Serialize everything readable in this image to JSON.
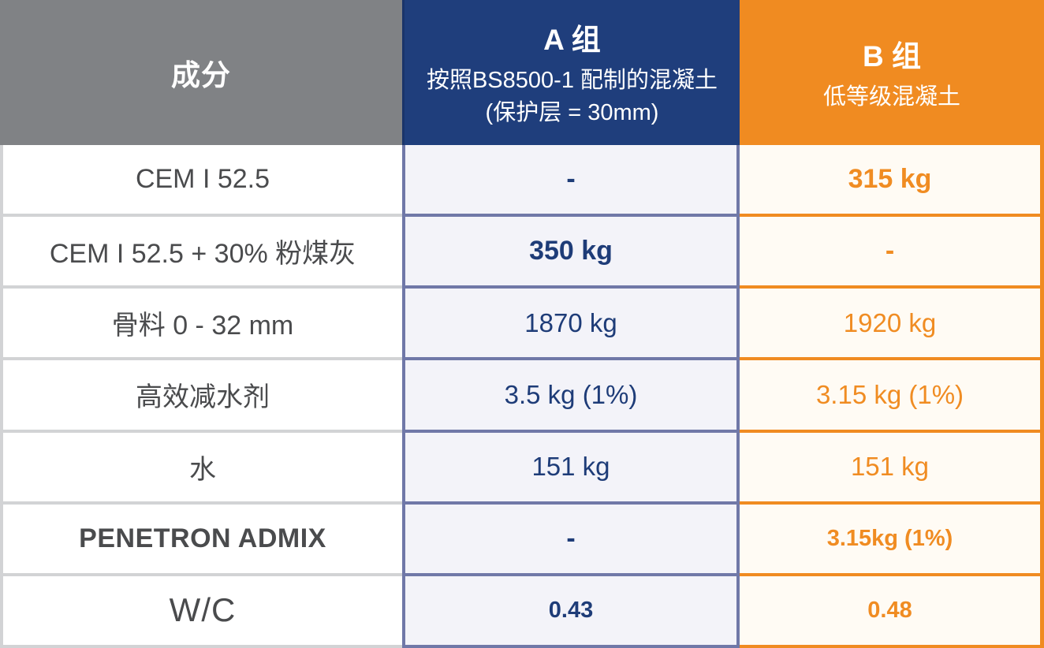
{
  "chart_data": {
    "type": "table",
    "header": {
      "ingredient": "成分",
      "group_a_title": "A 组",
      "group_a_subtitle": "按照BS8500-1 配制的混凝土(保护层 = 30mm)",
      "group_b_title": "B 组",
      "group_b_subtitle": "低等级混凝土"
    },
    "rows": [
      {
        "ingredient": "CEM I 52.5",
        "group_a": "-",
        "group_b": "315 kg"
      },
      {
        "ingredient": "CEM I 52.5 + 30% 粉煤灰",
        "group_a": "350 kg",
        "group_b": "-"
      },
      {
        "ingredient": "骨料 0 - 32 mm",
        "group_a": "1870 kg",
        "group_b": "1920 kg"
      },
      {
        "ingredient": "高效减水剂",
        "group_a": "3.5 kg (1%)",
        "group_b": "3.15 kg (1%)"
      },
      {
        "ingredient": "水",
        "group_a": "151 kg",
        "group_b": "151 kg"
      },
      {
        "ingredient": "PENETRON ADMIX",
        "group_a": "-",
        "group_b": "3.15kg (1%)"
      },
      {
        "ingredient": "W/C",
        "group_a": "0.43",
        "group_b": "0.48"
      }
    ]
  },
  "colors": {
    "header_gray": "#808285",
    "header_blue": "#1f3e7c",
    "header_orange": "#f08b21",
    "cell_a_bg": "#f3f3f9",
    "cell_b_bg": "#fffbf4",
    "border_a": "#7078a8",
    "border_b": "#f08b21",
    "border_gray": "#d2d3d5",
    "text_blue": "#1e3c78",
    "text_orange": "#f08c22",
    "text_gray": "#4a4b4d"
  }
}
